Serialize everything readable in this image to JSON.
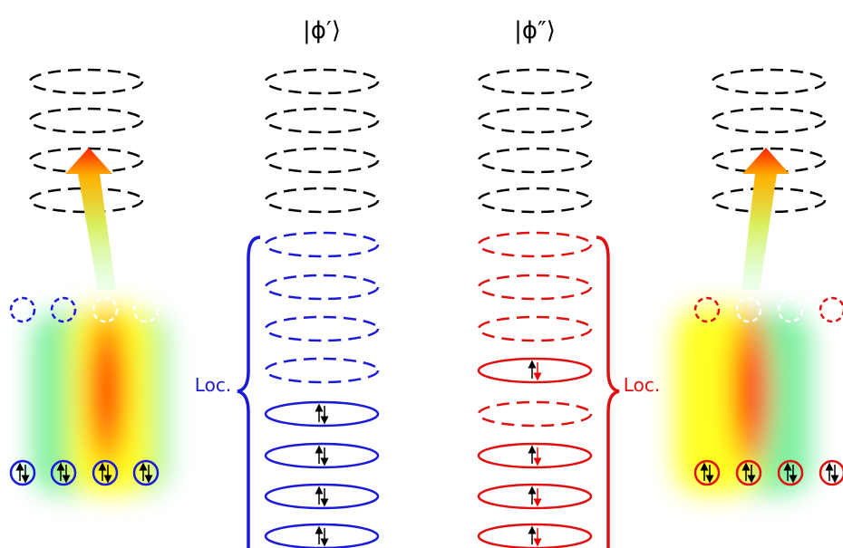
{
  "kets": {
    "phi_prime": "|ϕ′⟩",
    "phi_double_prime": "|ϕ″⟩"
  },
  "loc_left": "Loc.",
  "loc_right": "Loc."
}
